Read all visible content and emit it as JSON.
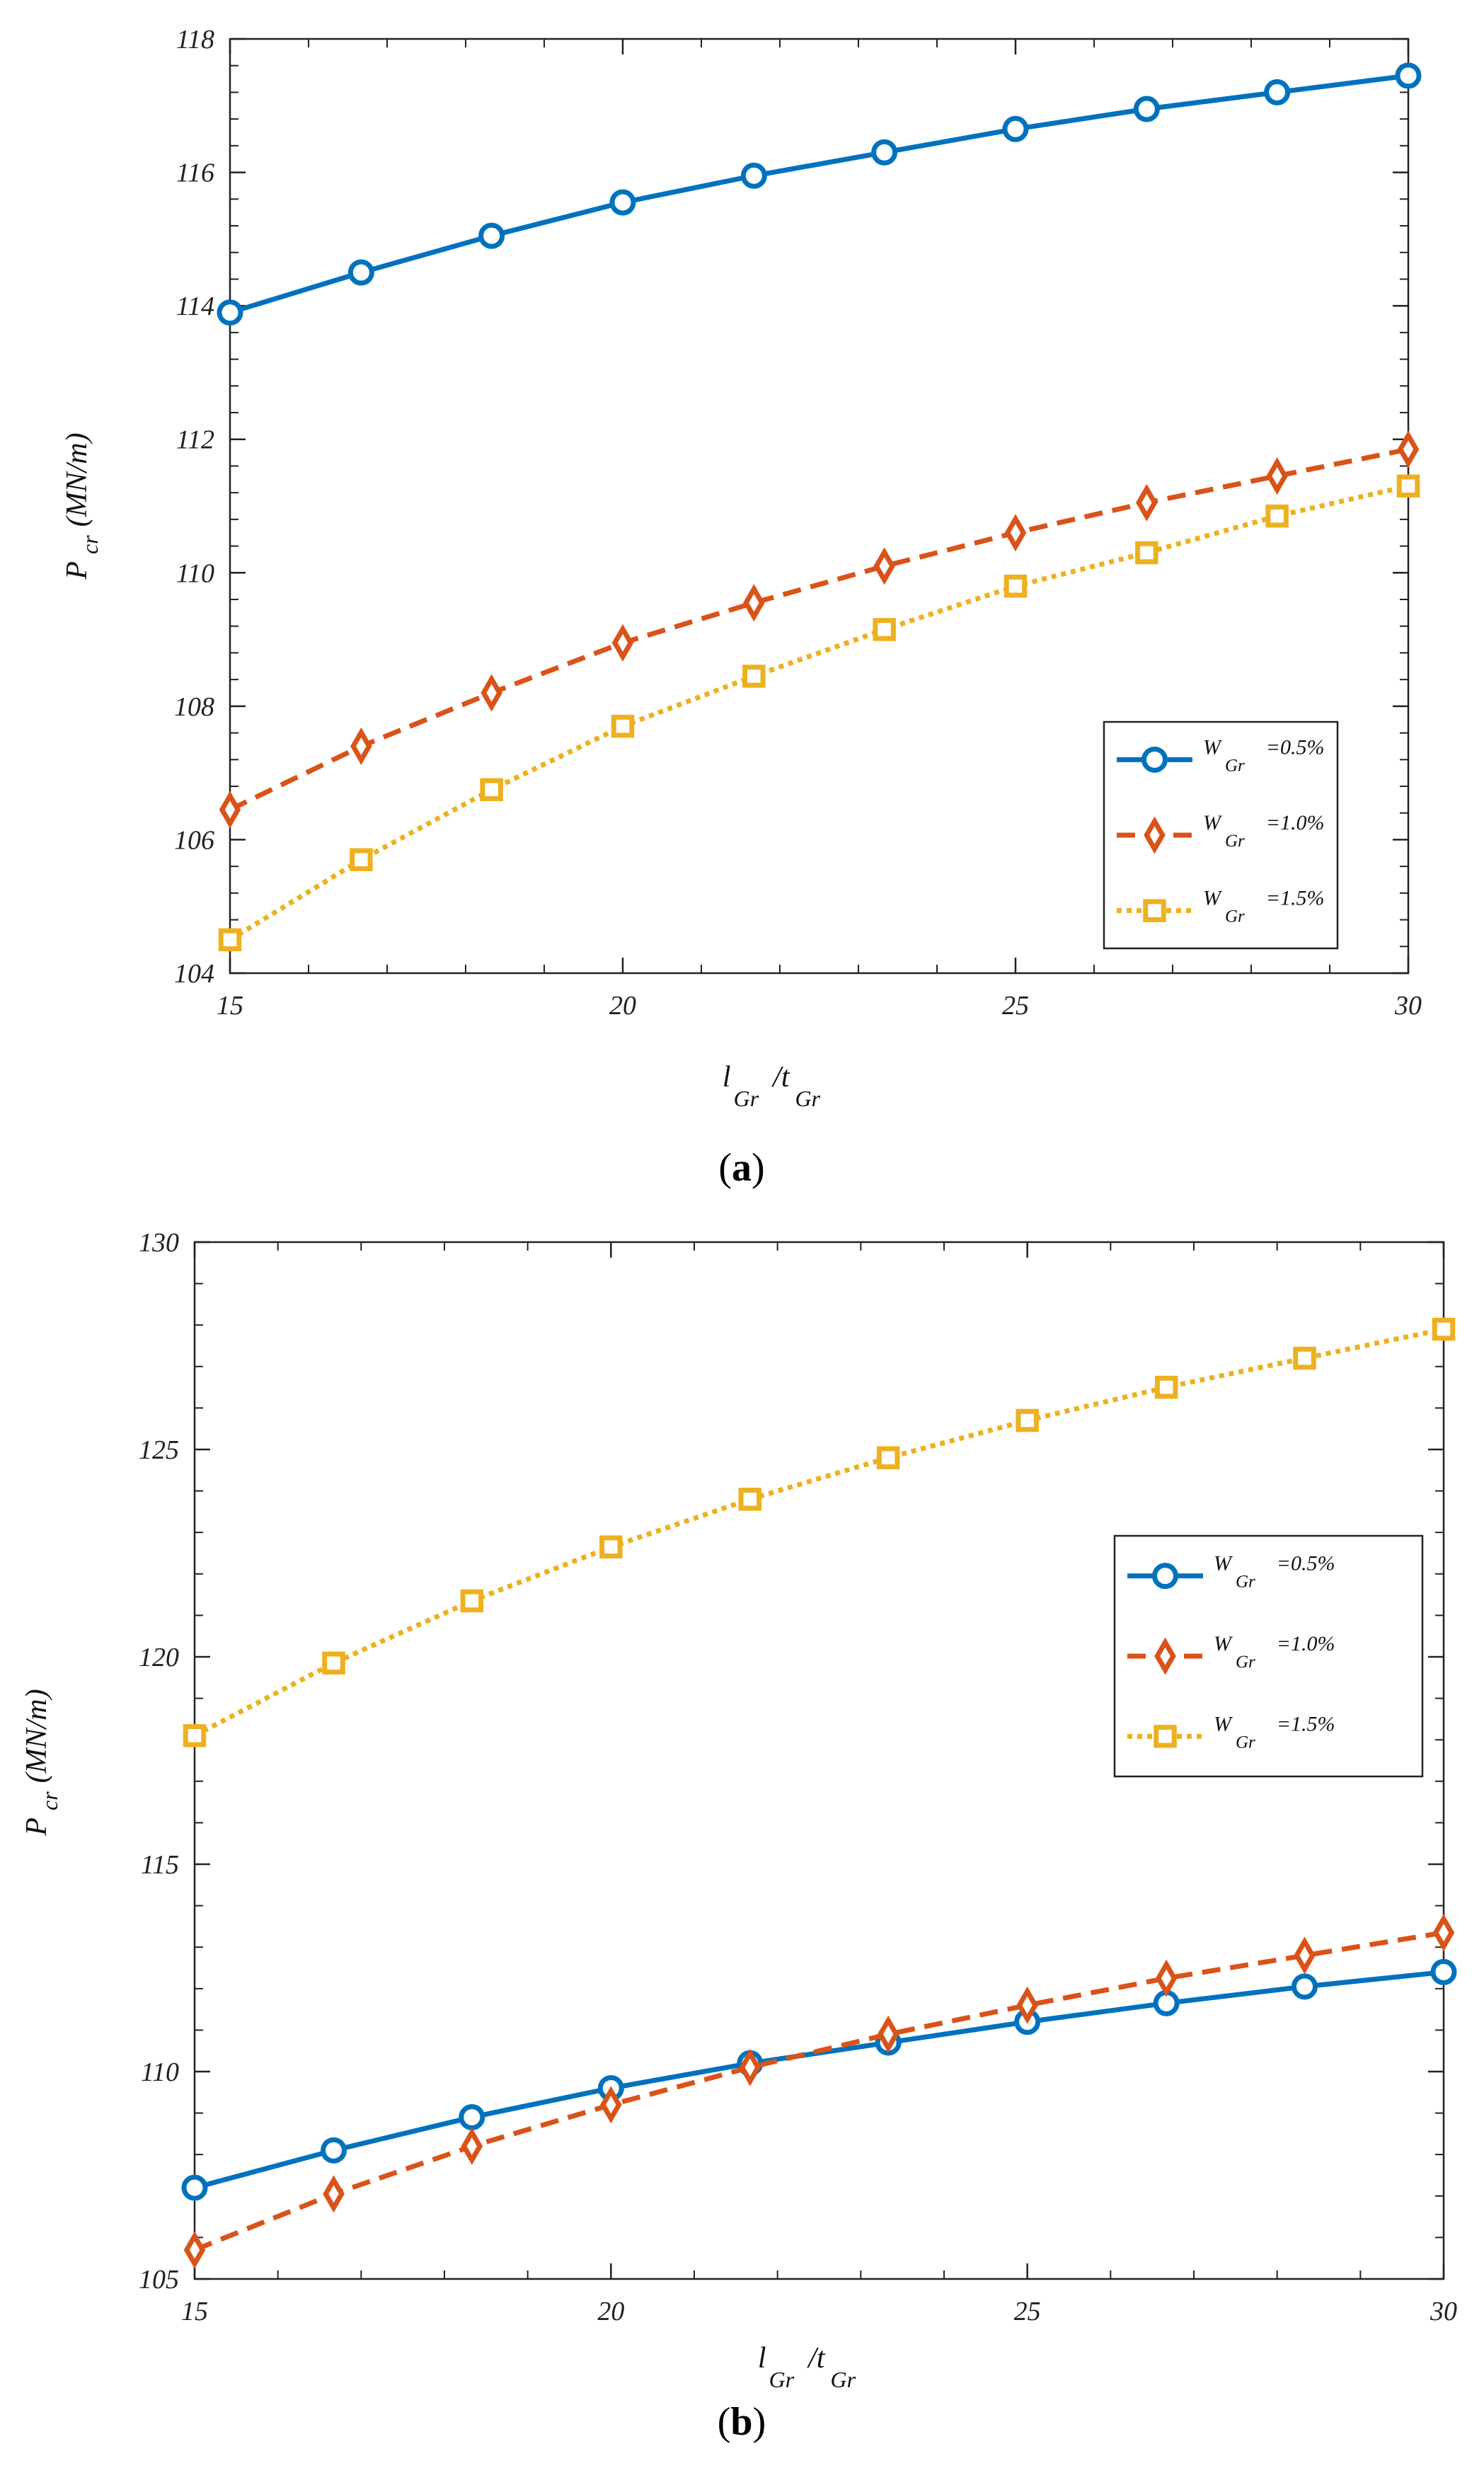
{
  "chart_data": [
    {
      "id": "a",
      "type": "line",
      "caption_letter": "a",
      "caption_open": "(",
      "caption_close": ")",
      "ylabel": {
        "main": "P",
        "sub": "cr",
        "unit": "(MN/m)"
      },
      "xlabel": {
        "main1": "l",
        "sub1": "Gr",
        "main2": "/t",
        "sub2": "Gr"
      },
      "xlim": [
        15,
        30
      ],
      "ylim": [
        104,
        118
      ],
      "xticks": [
        15,
        20,
        25,
        30
      ],
      "yticks": [
        104,
        106,
        108,
        110,
        112,
        114,
        116,
        118
      ],
      "x": [
        15,
        16.67,
        18.33,
        20,
        21.67,
        23.33,
        25,
        26.67,
        28.33,
        30
      ],
      "legend_position": "lower-right",
      "series": [
        {
          "name": "W_Gr=0.5%",
          "leg_main": "W",
          "leg_sub": "Gr",
          "leg_val": "=0.5%",
          "color": "#0072BD",
          "marker": "circle",
          "dash": "solid",
          "values": [
            113.9,
            114.5,
            115.05,
            115.55,
            115.95,
            116.3,
            116.65,
            116.95,
            117.2,
            117.45
          ]
        },
        {
          "name": "W_Gr=1.0%",
          "leg_main": "W",
          "leg_sub": "Gr",
          "leg_val": "=1.0%",
          "color": "#D95319",
          "marker": "diamond",
          "dash": "dashed",
          "values": [
            106.45,
            107.4,
            108.2,
            108.95,
            109.55,
            110.1,
            110.6,
            111.05,
            111.45,
            111.85
          ]
        },
        {
          "name": "W_Gr=1.5%",
          "leg_main": "W",
          "leg_sub": "Gr",
          "leg_val": "=1.5%",
          "color": "#EDB120",
          "marker": "square",
          "dash": "dotted",
          "values": [
            104.5,
            105.7,
            106.75,
            107.7,
            108.45,
            109.15,
            109.8,
            110.3,
            110.85,
            111.3
          ]
        }
      ]
    },
    {
      "id": "b",
      "type": "line",
      "caption_letter": "b",
      "caption_open": "(",
      "caption_close": ")",
      "ylabel": {
        "main": "P",
        "sub": "cr",
        "unit": "(MN/m)"
      },
      "xlabel": {
        "main1": "l",
        "sub1": "Gr",
        "main2": "/t",
        "sub2": "Gr"
      },
      "xlim": [
        15,
        30
      ],
      "ylim": [
        105,
        130
      ],
      "xticks": [
        15,
        20,
        25,
        30
      ],
      "yticks": [
        105,
        110,
        115,
        120,
        125,
        130
      ],
      "x": [
        15,
        16.67,
        18.33,
        20,
        21.67,
        23.33,
        25,
        26.67,
        28.33,
        30
      ],
      "legend_position": "right",
      "series": [
        {
          "name": "W_Gr=0.5%",
          "leg_main": "W",
          "leg_sub": "Gr",
          "leg_val": "=0.5%",
          "color": "#0072BD",
          "marker": "circle",
          "dash": "solid",
          "values": [
            107.2,
            108.1,
            108.9,
            109.6,
            110.2,
            110.7,
            111.2,
            111.65,
            112.05,
            112.4
          ]
        },
        {
          "name": "W_Gr=1.0%",
          "leg_main": "W",
          "leg_sub": "Gr",
          "leg_val": "=1.0%",
          "color": "#D95319",
          "marker": "diamond",
          "dash": "dashed",
          "values": [
            105.7,
            107.05,
            108.2,
            109.2,
            110.1,
            110.9,
            111.6,
            112.25,
            112.8,
            113.35
          ]
        },
        {
          "name": "W_Gr=1.5%",
          "leg_main": "W",
          "leg_sub": "Gr",
          "leg_val": "=1.5%",
          "color": "#EDB120",
          "marker": "square",
          "dash": "dotted",
          "values": [
            118.1,
            119.85,
            121.35,
            122.65,
            123.8,
            124.8,
            125.7,
            126.5,
            127.2,
            127.9
          ]
        }
      ]
    }
  ]
}
